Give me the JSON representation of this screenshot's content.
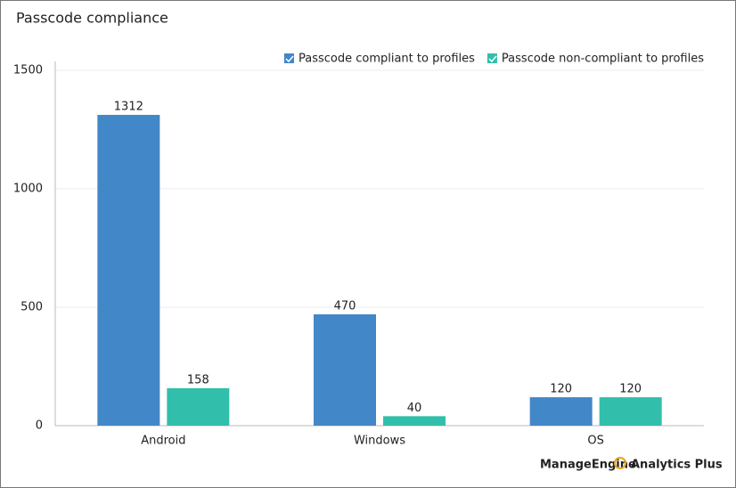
{
  "chart_data": {
    "type": "bar",
    "title": "Passcode compliance",
    "categories": [
      "Android",
      "Windows",
      "OS"
    ],
    "series": [
      {
        "name": "Passcode compliant to profiles",
        "color": "#4287c8",
        "values": [
          1312,
          470,
          120
        ]
      },
      {
        "name": "Passcode non-compliant to profiles",
        "color": "#31bfab",
        "values": [
          158,
          40,
          120
        ]
      }
    ],
    "ylim": [
      0,
      1500
    ],
    "yticks": [
      0,
      500,
      1000,
      1500
    ],
    "grid": true,
    "legend": "top-right"
  },
  "brand": {
    "name": "ManageEngine",
    "product": "Analytics Plus"
  }
}
